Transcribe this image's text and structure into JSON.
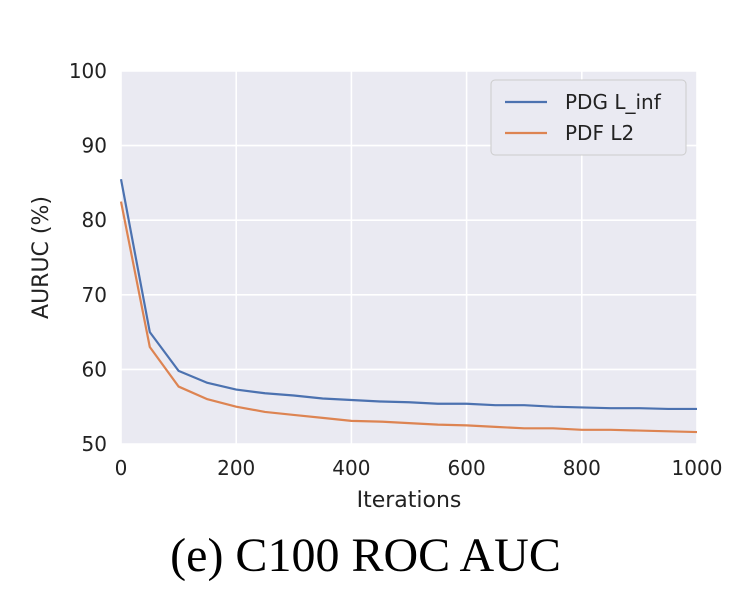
{
  "caption": "(e) C100 ROC AUC",
  "chart_data": {
    "type": "line",
    "title": "",
    "xlabel": "Iterations",
    "ylabel": "AURUC (%)",
    "xlim": [
      0,
      1000
    ],
    "ylim": [
      50,
      100
    ],
    "xticks": [
      0,
      200,
      400,
      600,
      800,
      1000
    ],
    "yticks": [
      50,
      60,
      70,
      80,
      90,
      100
    ],
    "grid": true,
    "legend_position": "top-right",
    "x": [
      0,
      50,
      100,
      150,
      200,
      250,
      300,
      350,
      400,
      450,
      500,
      550,
      600,
      650,
      700,
      750,
      800,
      850,
      900,
      950,
      1000
    ],
    "series": [
      {
        "name": "PDG L_inf",
        "color": "#4c72b0",
        "values": [
          85.5,
          65.0,
          59.8,
          58.2,
          57.3,
          56.8,
          56.5,
          56.1,
          55.9,
          55.7,
          55.6,
          55.4,
          55.4,
          55.2,
          55.2,
          55.0,
          54.9,
          54.8,
          54.8,
          54.7,
          54.7
        ]
      },
      {
        "name": "PDF L2",
        "color": "#dd8452",
        "values": [
          82.5,
          63.0,
          57.7,
          56.0,
          55.0,
          54.3,
          53.9,
          53.5,
          53.1,
          53.0,
          52.8,
          52.6,
          52.5,
          52.3,
          52.1,
          52.1,
          51.9,
          51.9,
          51.8,
          51.7,
          51.6
        ]
      }
    ]
  }
}
